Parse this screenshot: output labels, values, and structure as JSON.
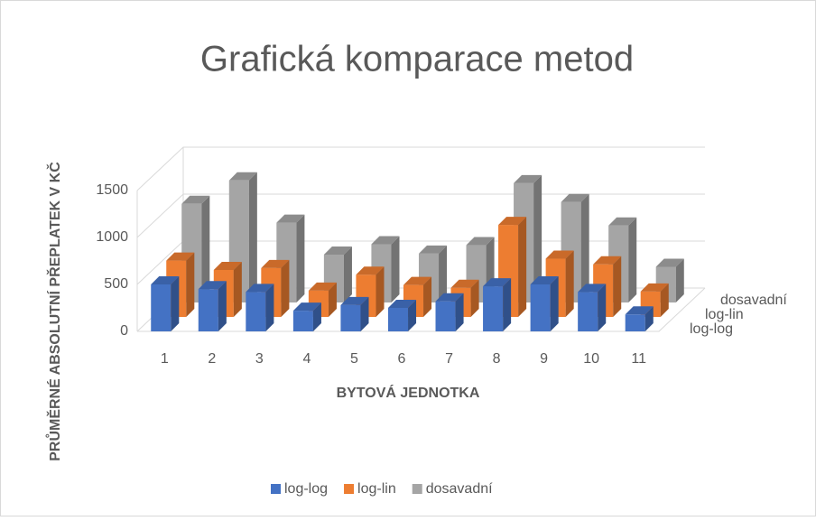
{
  "chart_data": {
    "type": "bar3d",
    "title": "Grafická komparace metod",
    "x_label": "BYTOVÁ JEDNOTKA",
    "y_label": "PRŮMĚRNÉ ABSOLUTNÍ PŘEPLATEK V KČ",
    "categories": [
      "1",
      "2",
      "3",
      "4",
      "5",
      "6",
      "7",
      "8",
      "9",
      "10",
      "11"
    ],
    "series": [
      {
        "name": "log-log",
        "color": "#4472c4",
        "values": [
          500,
          450,
          420,
          220,
          280,
          250,
          320,
          480,
          500,
          420,
          180
        ]
      },
      {
        "name": "log-lin",
        "color": "#ed7d31",
        "values": [
          600,
          500,
          520,
          280,
          450,
          340,
          310,
          980,
          620,
          560,
          270
        ]
      },
      {
        "name": "dosavadní",
        "color": "#a5a5a5",
        "values": [
          1050,
          1300,
          850,
          510,
          620,
          520,
          610,
          1270,
          1070,
          820,
          380
        ]
      }
    ],
    "ylim": [
      0,
      1500
    ],
    "yticks": [
      0,
      500,
      1000,
      1500
    ],
    "grid": true,
    "legend": "bottom"
  }
}
